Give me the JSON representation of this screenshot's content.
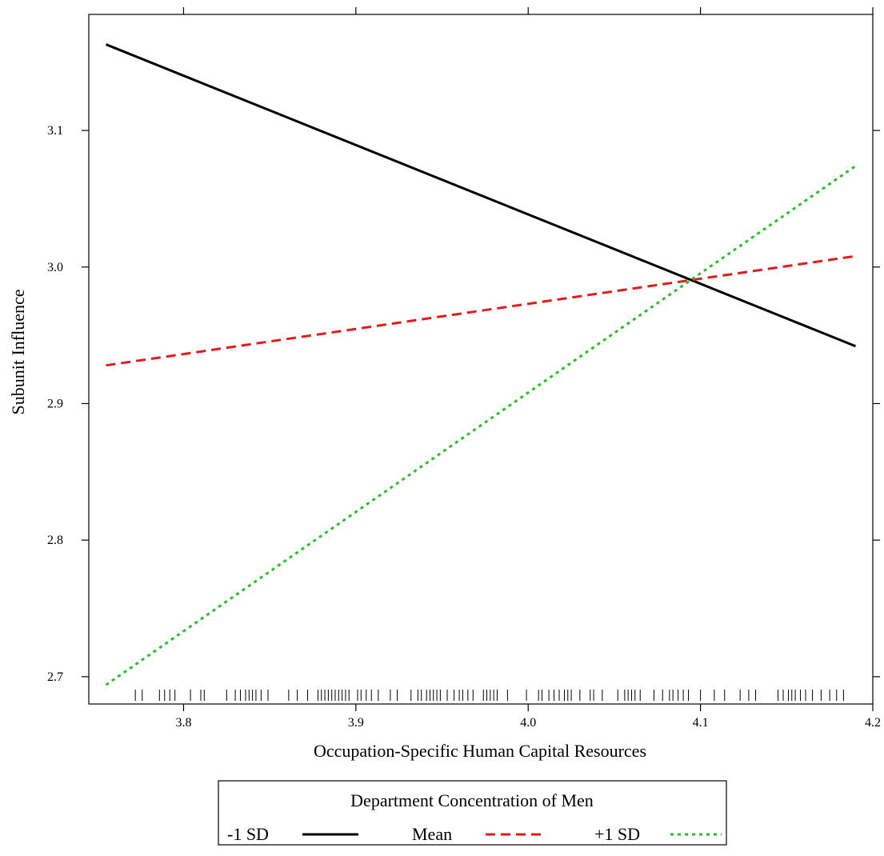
{
  "chart_data": {
    "type": "line",
    "title": "",
    "xlabel": "Occupation-Specific Human Capital Resources",
    "ylabel": "Subunit Influence",
    "xlim": [
      3.745,
      4.2
    ],
    "ylim": [
      2.68,
      3.185
    ],
    "x_ticks": [
      {
        "value": 3.8,
        "label": "3.8"
      },
      {
        "value": 3.9,
        "label": "3.9"
      },
      {
        "value": 4.0,
        "label": "4.0"
      },
      {
        "value": 4.1,
        "label": "4.1"
      },
      {
        "value": 4.2,
        "label": "4.2"
      }
    ],
    "y_ticks": [
      {
        "value": 2.7,
        "label": "2.7"
      },
      {
        "value": 2.8,
        "label": "2.8"
      },
      {
        "value": 2.9,
        "label": "2.9"
      },
      {
        "value": 3.0,
        "label": "3.0"
      },
      {
        "value": 3.1,
        "label": "3.1"
      }
    ],
    "series": [
      {
        "name": "-1 SD",
        "x": [
          3.755,
          4.19
        ],
        "y": [
          3.163,
          2.942
        ],
        "color": "#000000",
        "style": "solid"
      },
      {
        "name": "Mean",
        "x": [
          3.755,
          4.19
        ],
        "y": [
          2.928,
          3.008
        ],
        "color": "#e41a1c",
        "style": "dashed"
      },
      {
        "name": "+1 SD",
        "x": [
          3.755,
          4.19
        ],
        "y": [
          2.694,
          3.074
        ],
        "color": "#1fc41f",
        "style": "dotted"
      }
    ],
    "rug_x": [
      3.772,
      3.776,
      3.786,
      3.789,
      3.792,
      3.795,
      3.804,
      3.81,
      3.812,
      3.825,
      3.83,
      3.833,
      3.836,
      3.838,
      3.84,
      3.842,
      3.845,
      3.849,
      3.861,
      3.866,
      3.872,
      3.878,
      3.88,
      3.882,
      3.884,
      3.886,
      3.888,
      3.89,
      3.892,
      3.894,
      3.896,
      3.901,
      3.903,
      3.906,
      3.909,
      3.913,
      3.92,
      3.924,
      3.932,
      3.936,
      3.938,
      3.941,
      3.943,
      3.945,
      3.947,
      3.949,
      3.953,
      3.957,
      3.96,
      3.962,
      3.965,
      3.968,
      3.974,
      3.976,
      3.978,
      3.98,
      3.982,
      3.988,
      3.999,
      4.006,
      4.008,
      4.012,
      4.015,
      4.018,
      4.021,
      4.023,
      4.025,
      4.03,
      4.036,
      4.038,
      4.043,
      4.052,
      4.056,
      4.058,
      4.06,
      4.062,
      4.065,
      4.073,
      4.078,
      4.082,
      4.084,
      4.087,
      4.09,
      4.093,
      4.1,
      4.108,
      4.114,
      4.123,
      4.128,
      4.132,
      4.145,
      4.148,
      4.151,
      4.153,
      4.155,
      4.158,
      4.161,
      4.165,
      4.17,
      4.175,
      4.179,
      4.183
    ],
    "legend": {
      "title": "Department Concentration of Men",
      "position": "bottom",
      "entries": [
        "-1 SD",
        "Mean",
        "+1 SD"
      ]
    }
  }
}
